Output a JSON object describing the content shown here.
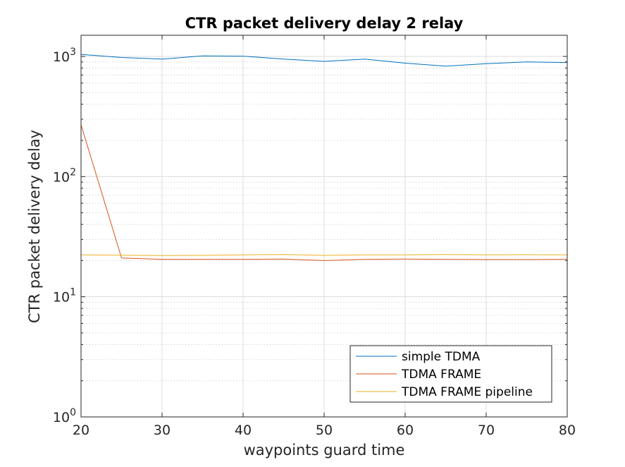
{
  "chart_data": {
    "type": "line",
    "title": "CTR packet delivery delay 2 relay",
    "xlabel": "waypoints guard time",
    "ylabel": "CTR packet delivery delay",
    "xlim": [
      20,
      80
    ],
    "ylim": [
      1,
      1500
    ],
    "yscale": "log",
    "x_ticks": [
      "20",
      "30",
      "40",
      "50",
      "60",
      "70",
      "80"
    ],
    "x_tick_values": [
      20,
      30,
      40,
      50,
      60,
      70,
      80
    ],
    "y_ticks": [
      {
        "base": "10",
        "exp": "0",
        "value": 1
      },
      {
        "base": "10",
        "exp": "1",
        "value": 10
      },
      {
        "base": "10",
        "exp": "2",
        "value": 100
      },
      {
        "base": "10",
        "exp": "3",
        "value": 1000
      }
    ],
    "grid": true,
    "minor_grid": true,
    "legend_position": "bottom-right",
    "x": [
      20,
      25,
      30,
      35,
      40,
      45,
      50,
      55,
      60,
      65,
      70,
      75,
      80
    ],
    "series": [
      {
        "name": "simple TDMA",
        "color": "#0072BD",
        "values": [
          1040,
          980,
          950,
          1010,
          1005,
          950,
          910,
          950,
          880,
          830,
          870,
          900,
          890
        ]
      },
      {
        "name": "TDMA FRAME",
        "color": "#D95319",
        "values": [
          270,
          21,
          20.5,
          20.5,
          20.5,
          20.6,
          20,
          20.5,
          20.6,
          20.5,
          20.4,
          20.4,
          20.5
        ]
      },
      {
        "name": "TDMA FRAME pipeline",
        "color": "#EDB120",
        "values": [
          22.3,
          22.2,
          22.0,
          22.1,
          22.3,
          22.5,
          22.1,
          22.3,
          22.3,
          22.5,
          22.3,
          22.4,
          22.3
        ]
      }
    ]
  }
}
